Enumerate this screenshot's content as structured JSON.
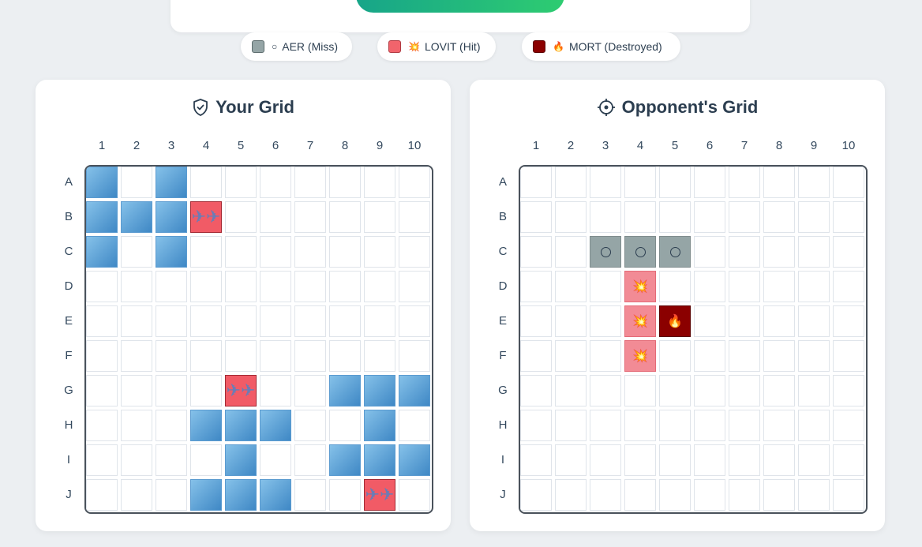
{
  "legend": [
    {
      "name": "legend-miss",
      "icon": "circle-icon",
      "symbol": "○",
      "label": "AER (Miss)",
      "swatch": "miss"
    },
    {
      "name": "legend-hit",
      "icon": "explosion-icon",
      "symbol": "💥",
      "label": "LOVIT (Hit)",
      "swatch": "hit"
    },
    {
      "name": "legend-destroyed",
      "icon": "fire-icon",
      "symbol": "🔥",
      "label": "MORT (Destroyed)",
      "swatch": "mort"
    }
  ],
  "columns": [
    "1",
    "2",
    "3",
    "4",
    "5",
    "6",
    "7",
    "8",
    "9",
    "10"
  ],
  "rows": [
    "A",
    "B",
    "C",
    "D",
    "E",
    "F",
    "G",
    "H",
    "I",
    "J"
  ],
  "your_grid": {
    "title": "Your Grid",
    "icon": "shield-check-icon",
    "ship_cells": [
      "A1",
      "A3",
      "B1",
      "B2",
      "B3",
      "C1",
      "C3",
      "G8",
      "G9",
      "G10",
      "H4",
      "H5",
      "H6",
      "H9",
      "I5",
      "I8",
      "I9",
      "I10",
      "J4",
      "J5",
      "J6"
    ],
    "hit_cells": [
      "B4",
      "G5",
      "J9"
    ],
    "hit_symbol": "✈",
    "hit_icon": "airplane-icon"
  },
  "opponent_grid": {
    "title": "Opponent's Grid",
    "icon": "crosshair-icon",
    "miss_cells": [
      "C3",
      "C4",
      "C5"
    ],
    "hit_cells": [
      "D4",
      "E4",
      "F4"
    ],
    "destroyed_cells": [
      "E5"
    ],
    "hit_symbol": "💥",
    "destroyed_symbol": "🔥"
  },
  "colors": {
    "ship": "#5b9bd0",
    "hit": "#f15b66",
    "miss": "#95a5a6",
    "opponent_hit": "#f28b95",
    "destroyed": "#8b0000"
  }
}
